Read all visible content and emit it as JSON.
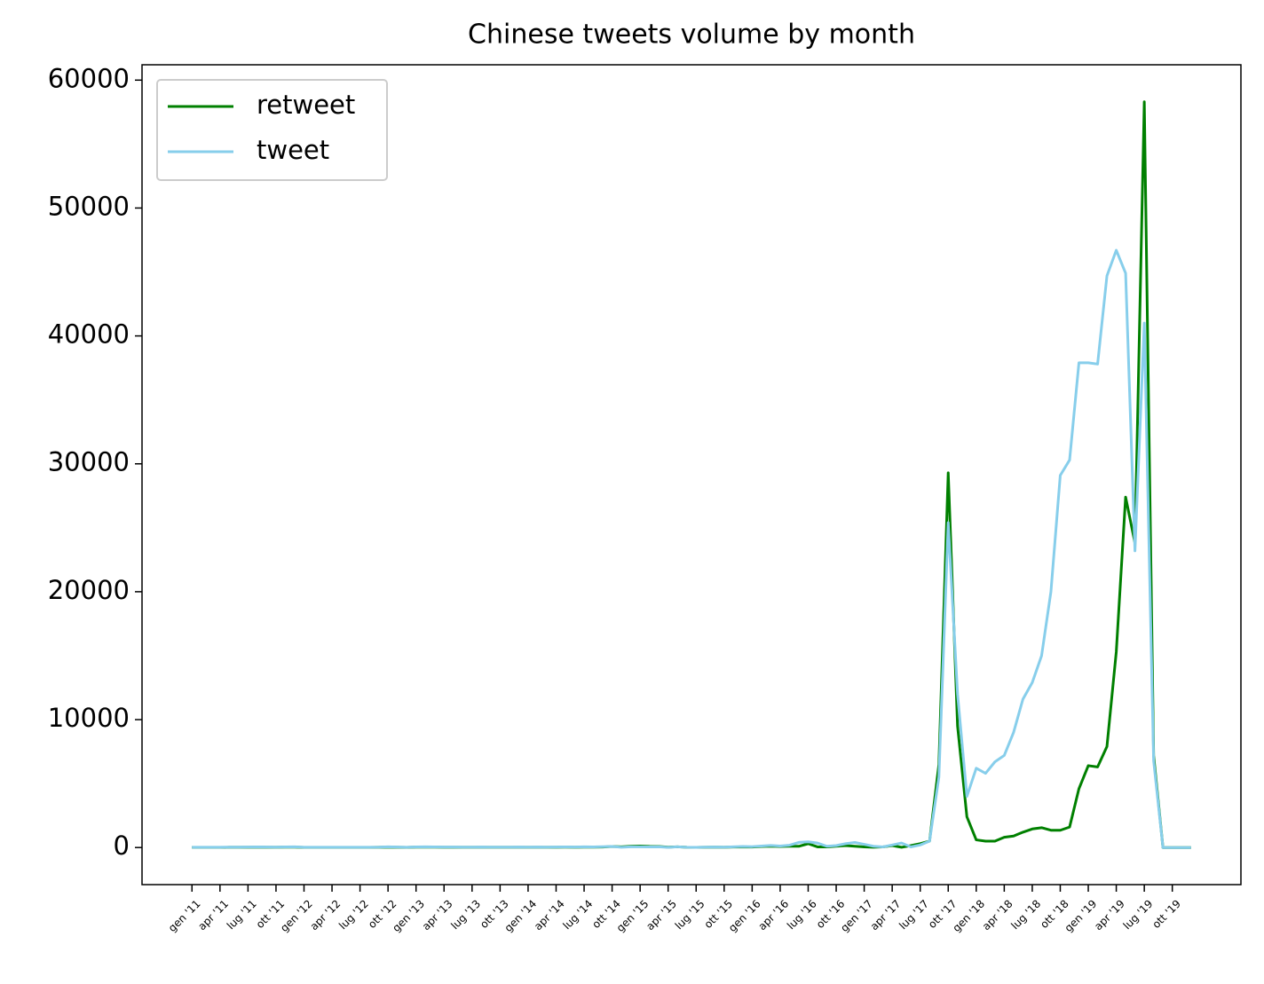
{
  "chart_data": {
    "type": "line",
    "title": "Chinese tweets volume by month",
    "categories": [
      "gen '11",
      null,
      null,
      "apr '11",
      null,
      null,
      "lug '11",
      null,
      null,
      "ott '11",
      null,
      null,
      "gen '12",
      null,
      null,
      "apr '12",
      null,
      null,
      "lug '12",
      null,
      null,
      "ott '12",
      null,
      null,
      "gen '13",
      null,
      null,
      "apr '13",
      null,
      null,
      "lug '13",
      null,
      null,
      "ott '13",
      null,
      null,
      "gen '14",
      null,
      null,
      "apr '14",
      null,
      null,
      "lug '14",
      null,
      null,
      "ott '14",
      null,
      null,
      "gen '15",
      null,
      null,
      "apr '15",
      null,
      null,
      "lug '15",
      null,
      null,
      "ott '15",
      null,
      null,
      "gen '16",
      null,
      null,
      "apr '16",
      null,
      null,
      "lug '16",
      null,
      null,
      "ott '16",
      null,
      null,
      "gen '17",
      null,
      null,
      "apr '17",
      null,
      null,
      "lug '17",
      null,
      null,
      "ott '17",
      null,
      null,
      "gen '18",
      null,
      null,
      "apr '18",
      null,
      null,
      "lug '18",
      null,
      null,
      "ott '18",
      null,
      null,
      "gen '19",
      null,
      null,
      "apr '19",
      null,
      null,
      "lug '19",
      null,
      null,
      "ott '19",
      null,
      null
    ],
    "series": [
      {
        "name": "retweet",
        "color": "#008000",
        "values": [
          10,
          10,
          10,
          10,
          20,
          20,
          20,
          30,
          20,
          20,
          30,
          30,
          10,
          10,
          10,
          10,
          10,
          10,
          10,
          10,
          20,
          30,
          20,
          10,
          30,
          30,
          30,
          20,
          20,
          20,
          20,
          20,
          20,
          20,
          20,
          20,
          20,
          20,
          20,
          20,
          30,
          20,
          30,
          30,
          40,
          80,
          60,
          100,
          120,
          90,
          80,
          30,
          60,
          20,
          10,
          20,
          30,
          20,
          40,
          50,
          40,
          80,
          100,
          80,
          100,
          100,
          300,
          50,
          50,
          100,
          150,
          100,
          50,
          20,
          50,
          150,
          20,
          150,
          300,
          500,
          6500,
          29300,
          9500,
          2400,
          600,
          500,
          500,
          800,
          900,
          1200,
          1450,
          1550,
          1350,
          1350,
          1600,
          4600,
          6400,
          6300,
          7900,
          15300,
          27400,
          23800,
          58300,
          7200,
          0,
          0,
          0,
          0
        ]
      },
      {
        "name": "tweet",
        "color": "#87ceeb",
        "values": [
          20,
          20,
          20,
          20,
          30,
          30,
          40,
          50,
          40,
          30,
          50,
          60,
          20,
          20,
          20,
          20,
          20,
          20,
          20,
          20,
          30,
          60,
          40,
          20,
          50,
          60,
          50,
          40,
          40,
          30,
          30,
          40,
          30,
          30,
          30,
          40,
          30,
          40,
          30,
          40,
          50,
          40,
          60,
          50,
          70,
          80,
          20,
          60,
          60,
          50,
          60,
          10,
          60,
          20,
          10,
          30,
          40,
          30,
          60,
          80,
          70,
          120,
          160,
          120,
          180,
          400,
          450,
          350,
          100,
          150,
          300,
          400,
          250,
          100,
          50,
          200,
          350,
          50,
          200,
          500,
          5500,
          25400,
          12000,
          4000,
          6200,
          5800,
          6700,
          7200,
          9000,
          11600,
          12900,
          15000,
          20000,
          29100,
          30300,
          37900,
          37900,
          37800,
          44700,
          46700,
          44900,
          23200,
          41000,
          6800,
          0,
          0,
          0,
          0
        ]
      }
    ],
    "ylim": [
      -2900,
      61200
    ],
    "yticks": [
      0,
      10000,
      20000,
      30000,
      40000,
      50000,
      60000
    ],
    "legend": "upper left"
  }
}
